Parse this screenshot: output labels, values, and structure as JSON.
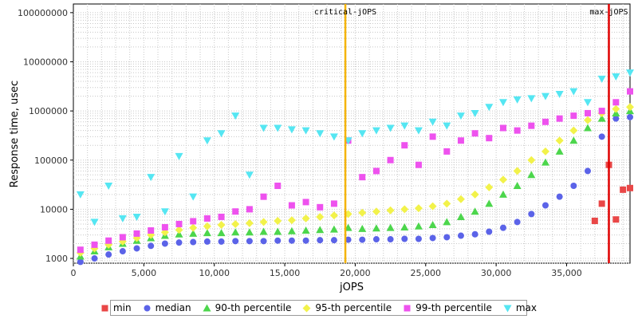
{
  "chart_data": {
    "type": "scatter",
    "xlabel": "jOPS",
    "ylabel": "Response time, usec",
    "x_scale": "linear",
    "y_scale": "log",
    "xlim": [
      0,
      39500
    ],
    "ylim": [
      800,
      150000000
    ],
    "x_ticks": [
      0,
      5000,
      10000,
      15000,
      20000,
      25000,
      30000,
      35000
    ],
    "x_tick_labels": [
      "0",
      "5,000",
      "10,000",
      "15,000",
      "20,000",
      "25,000",
      "30,000",
      "35,000"
    ],
    "y_ticks": [
      1000,
      10000,
      100000,
      1000000,
      10000000,
      100000000
    ],
    "y_tick_labels": [
      "1000",
      "10000",
      "100000",
      "1000000",
      "10000000",
      "100000000"
    ],
    "grid": true,
    "legend_position": "bottom",
    "annotations": [
      {
        "label": "critical-jOPS",
        "x": 19300,
        "color": "#f5b400"
      },
      {
        "label": "max-jOPS",
        "x": 38000,
        "color": "#e00000"
      }
    ],
    "series": [
      {
        "name": "min",
        "color": "#e94747",
        "marker": "square",
        "x": [
          37000,
          37500,
          38000,
          38500,
          39000,
          39500
        ],
        "y": [
          5800,
          13000,
          80000,
          6200,
          25000,
          27000
        ]
      },
      {
        "name": "median",
        "color": "#5b63e8",
        "marker": "circle",
        "x": [
          500,
          1500,
          2500,
          3500,
          4500,
          5500,
          6500,
          7500,
          8500,
          9500,
          10500,
          11500,
          12500,
          13500,
          14500,
          15500,
          16500,
          17500,
          18500,
          19500,
          20500,
          21500,
          22500,
          23500,
          24500,
          25500,
          26500,
          27500,
          28500,
          29500,
          30500,
          31500,
          32500,
          33500,
          34500,
          35500,
          36500,
          37500,
          38500,
          39500
        ],
        "y": [
          850,
          1000,
          1200,
          1400,
          1600,
          1800,
          2000,
          2100,
          2150,
          2200,
          2200,
          2250,
          2250,
          2250,
          2300,
          2300,
          2300,
          2350,
          2350,
          2400,
          2400,
          2450,
          2450,
          2500,
          2500,
          2600,
          2700,
          2900,
          3100,
          3500,
          4200,
          5500,
          8000,
          12000,
          18000,
          30000,
          60000,
          300000,
          700000,
          750000
        ]
      },
      {
        "name": "90-th percentile",
        "color": "#4cd64c",
        "marker": "triangle-up",
        "x": [
          500,
          1500,
          2500,
          3500,
          4500,
          5500,
          6500,
          7500,
          8500,
          9500,
          10500,
          11500,
          12500,
          13500,
          14500,
          15500,
          16500,
          17500,
          18500,
          19500,
          20500,
          21500,
          22500,
          23500,
          24500,
          25500,
          26500,
          27500,
          28500,
          29500,
          30500,
          31500,
          32500,
          33500,
          34500,
          35500,
          36500,
          37500,
          38500,
          39500
        ],
        "y": [
          1100,
          1400,
          1700,
          2000,
          2300,
          2600,
          2900,
          3100,
          3200,
          3300,
          3300,
          3400,
          3400,
          3500,
          3500,
          3600,
          3700,
          3800,
          3900,
          4200,
          4000,
          4100,
          4200,
          4300,
          4500,
          4800,
          5500,
          7000,
          9000,
          13000,
          20000,
          30000,
          50000,
          90000,
          150000,
          250000,
          450000,
          700000,
          900000,
          1000000
        ]
      },
      {
        "name": "95-th percentile",
        "color": "#f2f24a",
        "marker": "diamond",
        "x": [
          500,
          1500,
          2500,
          3500,
          4500,
          5500,
          6500,
          7500,
          8500,
          9500,
          10500,
          11500,
          12500,
          13500,
          14500,
          15500,
          16500,
          17500,
          18500,
          19500,
          20500,
          21500,
          22500,
          23500,
          24500,
          25500,
          26500,
          27500,
          28500,
          29500,
          30500,
          31500,
          32500,
          33500,
          34500,
          35500,
          36500,
          37500,
          38500,
          39500
        ],
        "y": [
          1300,
          1600,
          1900,
          2200,
          2600,
          3000,
          3400,
          3800,
          4200,
          4500,
          4800,
          5000,
          5200,
          5500,
          5800,
          6000,
          6500,
          7000,
          7500,
          8000,
          8500,
          9000,
          9500,
          10000,
          10500,
          11500,
          13000,
          16000,
          20000,
          28000,
          40000,
          60000,
          100000,
          150000,
          250000,
          400000,
          650000,
          900000,
          1100000,
          1200000
        ]
      },
      {
        "name": "99-th percentile",
        "color": "#ee52ee",
        "marker": "square",
        "x": [
          500,
          1500,
          2500,
          3500,
          4500,
          5500,
          6500,
          7500,
          8500,
          9500,
          10500,
          11500,
          12500,
          13500,
          14500,
          15500,
          16500,
          17500,
          18500,
          19500,
          20500,
          21500,
          22500,
          23500,
          24500,
          25500,
          26500,
          27500,
          28500,
          29500,
          30500,
          31500,
          32500,
          33500,
          34500,
          35500,
          36500,
          37500,
          38500,
          39500
        ],
        "y": [
          1500,
          1900,
          2300,
          2700,
          3200,
          3700,
          4300,
          5000,
          5700,
          6500,
          7000,
          9000,
          10000,
          18000,
          30000,
          12000,
          14000,
          11000,
          13000,
          250000,
          45000,
          60000,
          100000,
          200000,
          80000,
          300000,
          150000,
          250000,
          350000,
          280000,
          450000,
          400000,
          500000,
          600000,
          700000,
          800000,
          900000,
          1000000,
          1500000,
          2500000
        ]
      },
      {
        "name": "max",
        "color": "#55e6f2",
        "marker": "triangle-down",
        "x": [
          500,
          1500,
          2500,
          3500,
          4500,
          5500,
          6500,
          7500,
          8500,
          9500,
          10500,
          11500,
          12500,
          13500,
          14500,
          15500,
          16500,
          17500,
          18500,
          19500,
          20500,
          21500,
          22500,
          23500,
          24500,
          25500,
          26500,
          27500,
          28500,
          29500,
          30500,
          31500,
          32500,
          33500,
          34500,
          35500,
          36500,
          37500,
          38500,
          39500
        ],
        "y": [
          20000,
          5500,
          30000,
          6500,
          7000,
          45000,
          9000,
          120000,
          18000,
          250000,
          350000,
          800000,
          50000,
          450000,
          450000,
          420000,
          400000,
          350000,
          300000,
          250000,
          350000,
          400000,
          450000,
          500000,
          400000,
          600000,
          500000,
          800000,
          900000,
          1200000,
          1500000,
          1700000,
          1800000,
          2000000,
          2200000,
          2500000,
          1500000,
          4500000,
          5000000,
          6000000
        ]
      }
    ]
  }
}
